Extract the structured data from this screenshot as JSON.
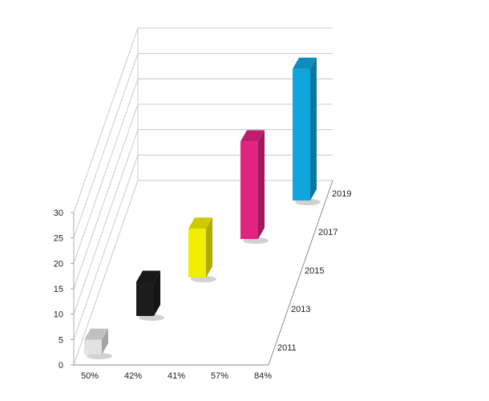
{
  "chart_data": {
    "type": "bar",
    "categories": [
      "2011",
      "2013",
      "2015",
      "2017",
      "2019"
    ],
    "category_labels": [
      "50%",
      "42%",
      "41%",
      "57%",
      "84%"
    ],
    "values": [
      3,
      7,
      10,
      20,
      27
    ],
    "ylim": [
      0,
      30
    ],
    "yticks": [
      "0",
      "5",
      "10",
      "15",
      "20",
      "25",
      "30"
    ],
    "grid": true,
    "colors": [
      "#e2e2e2",
      "#1c1c1c",
      "#f2ee00",
      "#e0237e",
      "#11a5dd"
    ]
  }
}
